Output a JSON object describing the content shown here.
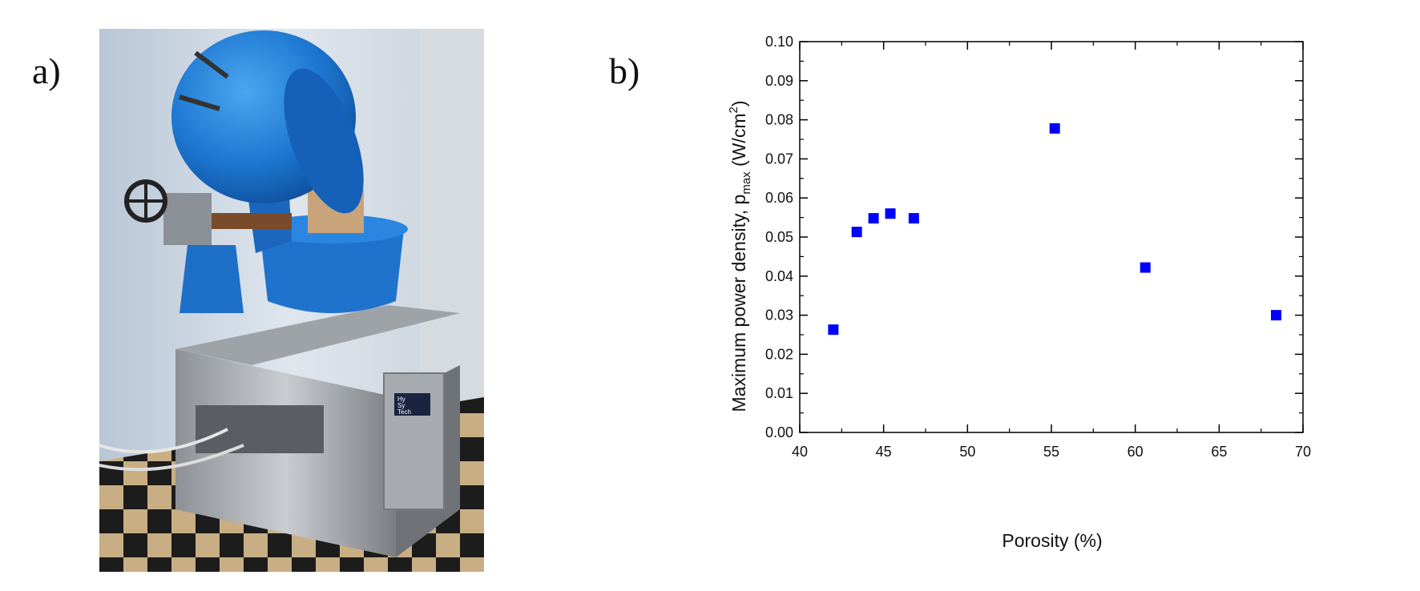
{
  "panels": {
    "a_label": "a)",
    "b_label": "b)"
  },
  "photo": {
    "badge_lines": [
      "Hy",
      "Sy",
      "Tech"
    ]
  },
  "chart_data": {
    "type": "scatter",
    "title": "",
    "xlabel": "Porosity (%)",
    "ylabel_main": "Maximum power density, p",
    "ylabel_sub": "max",
    "ylabel_unit": " (W/cm",
    "ylabel_sup": "2",
    "ylabel_close": ")",
    "xlim": [
      40,
      70
    ],
    "ylim": [
      0,
      0.1
    ],
    "xticks": [
      "40",
      "45",
      "50",
      "55",
      "60",
      "65",
      "70"
    ],
    "yticks": [
      "0.00",
      "0.01",
      "0.02",
      "0.03",
      "0.04",
      "0.05",
      "0.06",
      "0.07",
      "0.08",
      "0.09",
      "0.10"
    ],
    "marker": "square",
    "marker_color": "#0000ff",
    "grid": false,
    "series": [
      {
        "points": [
          {
            "x": 42.0,
            "y": 0.0263
          },
          {
            "x": 43.4,
            "y": 0.0513
          },
          {
            "x": 44.4,
            "y": 0.0548
          },
          {
            "x": 45.4,
            "y": 0.056
          },
          {
            "x": 46.8,
            "y": 0.0548
          },
          {
            "x": 55.2,
            "y": 0.0778
          },
          {
            "x": 60.6,
            "y": 0.0422
          },
          {
            "x": 68.4,
            "y": 0.03
          }
        ]
      }
    ]
  }
}
